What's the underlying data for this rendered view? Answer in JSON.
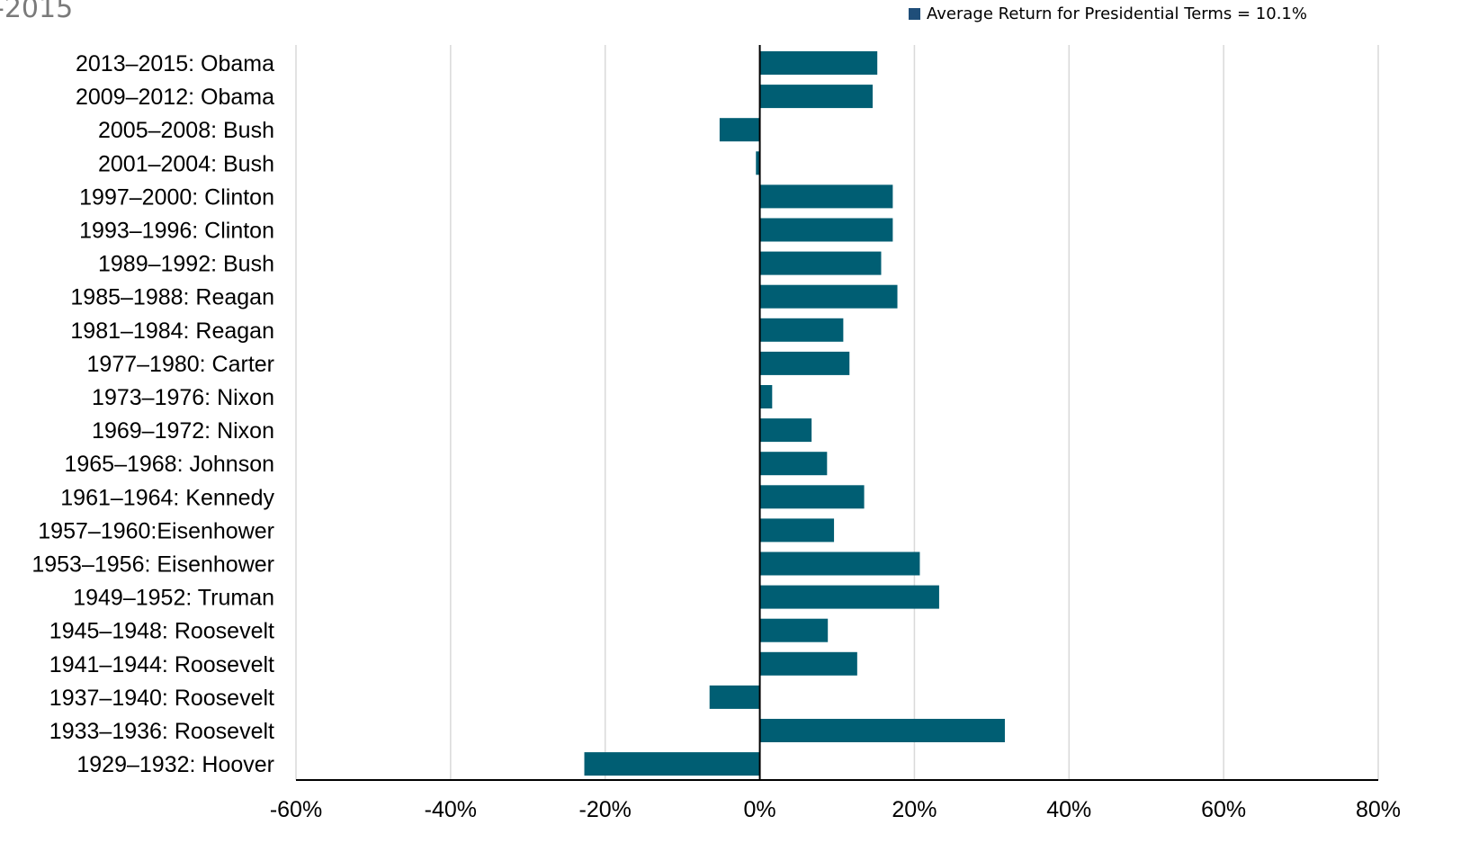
{
  "title_fragment": "-2015",
  "legend": {
    "label": "Average Return for Presidential Terms = 10.1%",
    "color": "#1f4e79"
  },
  "colors": {
    "bar": "#005e73",
    "grid": "#d9d9d9",
    "axis": "#000000"
  },
  "chart_data": {
    "type": "bar",
    "orientation": "horizontal",
    "title": "",
    "xlabel": "",
    "ylabel": "",
    "xlim": [
      -60,
      80
    ],
    "xticks": [
      -60,
      -40,
      -20,
      0,
      20,
      40,
      60,
      80
    ],
    "tick_suffix": "%",
    "grid": true,
    "legend_position": "top-right",
    "categories": [
      "2013–2015: Obama",
      "2009–2012: Obama",
      "2005–2008: Bush",
      "2001–2004: Bush",
      "1997–2000: Clinton",
      "1993–1996: Clinton",
      "1989–1992: Bush",
      "1985–1988: Reagan",
      "1981–1984: Reagan",
      "1977–1980: Carter",
      "1973–1976: Nixon",
      "1969–1972: Nixon",
      "1965–1968: Johnson",
      "1961–1964: Kennedy",
      "1957–1960:Eisenhower",
      "1953–1956: Eisenhower",
      "1949–1952: Truman",
      "1945–1948: Roosevelt",
      "1941–1944: Roosevelt",
      "1937–1940: Roosevelt",
      "1933–1936: Roosevelt",
      "1929–1932: Hoover"
    ],
    "values": [
      15.2,
      14.6,
      -5.2,
      -0.5,
      17.2,
      17.2,
      15.7,
      17.8,
      10.8,
      11.6,
      1.6,
      6.7,
      8.7,
      13.5,
      9.6,
      20.7,
      23.2,
      8.8,
      12.6,
      -6.5,
      31.7,
      -22.7
    ]
  }
}
